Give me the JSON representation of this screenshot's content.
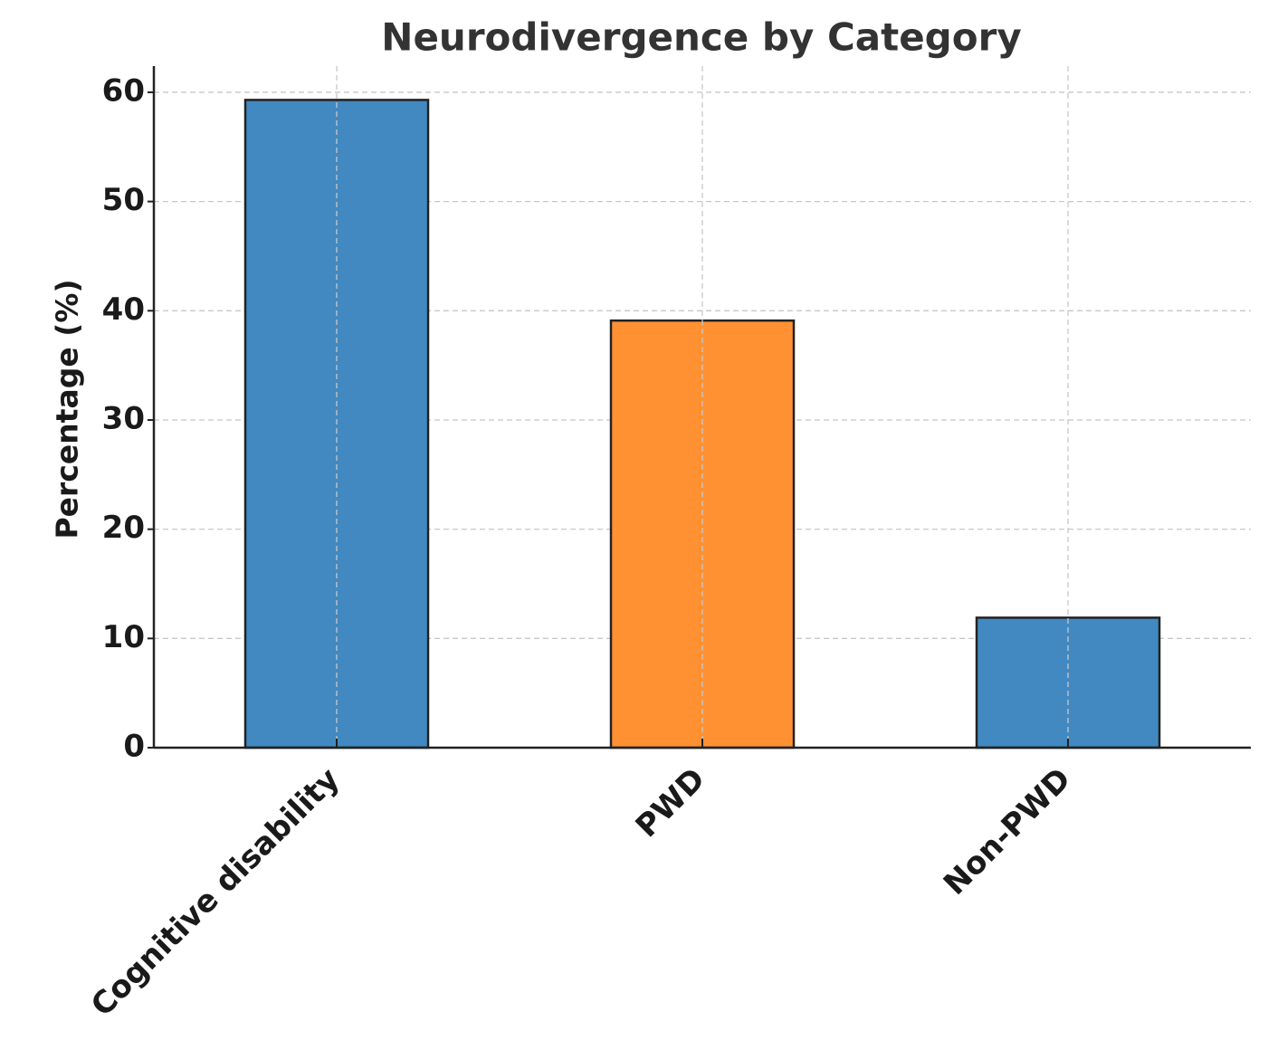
{
  "chart_data": {
    "type": "bar",
    "title": "Neurodivergence by Category",
    "ylabel": "Percentage (%)",
    "categories": [
      "Cognitive disability",
      "PWD",
      "Non-PWD"
    ],
    "values": [
      59.3,
      39.1,
      11.9
    ],
    "colors": [
      "#4189c0",
      "#ff9133",
      "#4189c0"
    ],
    "ylim": [
      0,
      62.4
    ],
    "yticks": [
      0,
      10,
      20,
      30,
      40,
      50,
      60
    ],
    "grid": true
  }
}
